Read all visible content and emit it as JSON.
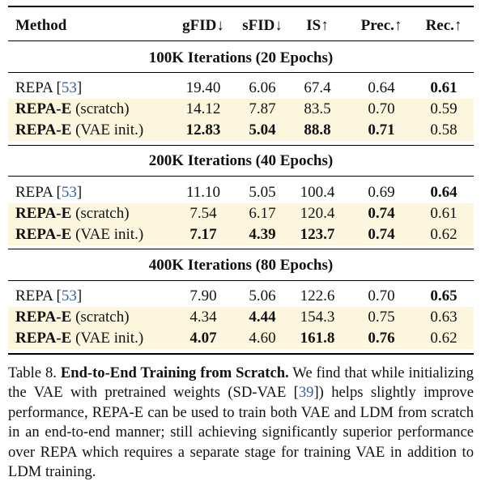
{
  "headers": {
    "method": "Method",
    "gfid": "gFID↓",
    "sfid": "sFID↓",
    "is": "IS↑",
    "prec": "Prec.↑",
    "rec": "Rec.↑"
  },
  "sections": [
    {
      "title": "100K Iterations (20 Epochs)",
      "rows": [
        {
          "name": "REPA",
          "cite": "53",
          "gfid": "19.40",
          "sfid": "6.06",
          "is": "67.4",
          "prec": "0.64",
          "rec": "0.61"
        },
        {
          "name": "REPA-E",
          "suffix": "(scratch)",
          "gfid": "14.12",
          "sfid": "7.87",
          "is": "83.5",
          "prec": "0.70",
          "rec": "0.59"
        },
        {
          "name": "REPA-E",
          "suffix": "(VAE init.)",
          "gfid": "12.83",
          "sfid": "5.04",
          "is": "88.8",
          "prec": "0.71",
          "rec": "0.58"
        }
      ]
    },
    {
      "title": "200K Iterations (40 Epochs)",
      "rows": [
        {
          "name": "REPA",
          "cite": "53",
          "gfid": "11.10",
          "sfid": "5.05",
          "is": "100.4",
          "prec": "0.69",
          "rec": "0.64"
        },
        {
          "name": "REPA-E",
          "suffix": "(scratch)",
          "gfid": "7.54",
          "sfid": "6.17",
          "is": "120.4",
          "prec": "0.74",
          "rec": "0.61"
        },
        {
          "name": "REPA-E",
          "suffix": "(VAE init.)",
          "gfid": "7.17",
          "sfid": "4.39",
          "is": "123.7",
          "prec": "0.74",
          "rec": "0.62"
        }
      ]
    },
    {
      "title": "400K Iterations (80 Epochs)",
      "rows": [
        {
          "name": "REPA",
          "cite": "53",
          "gfid": "7.90",
          "sfid": "5.06",
          "is": "122.6",
          "prec": "0.70",
          "rec": "0.65"
        },
        {
          "name": "REPA-E",
          "suffix": "(scratch)",
          "gfid": "4.34",
          "sfid": "4.44",
          "is": "154.3",
          "prec": "0.75",
          "rec": "0.63"
        },
        {
          "name": "REPA-E",
          "suffix": "(VAE init.)",
          "gfid": "4.07",
          "sfid": "4.60",
          "is": "161.8",
          "prec": "0.76",
          "rec": "0.62"
        }
      ]
    }
  ],
  "caption": {
    "label": "Table 8.",
    "title": "End-to-End Training from Scratch.",
    "text_a": " We find that while initializing the VAE with pretrained weights (SD-VAE [",
    "cite": "39",
    "text_b": "]) helps slightly improve performance, REPA-E can be used to train both VAE and LDM from scratch in an end-to-end manner; still achieving significantly superior performance over REPA which requires a separate stage for training VAE in addition to LDM training."
  }
}
